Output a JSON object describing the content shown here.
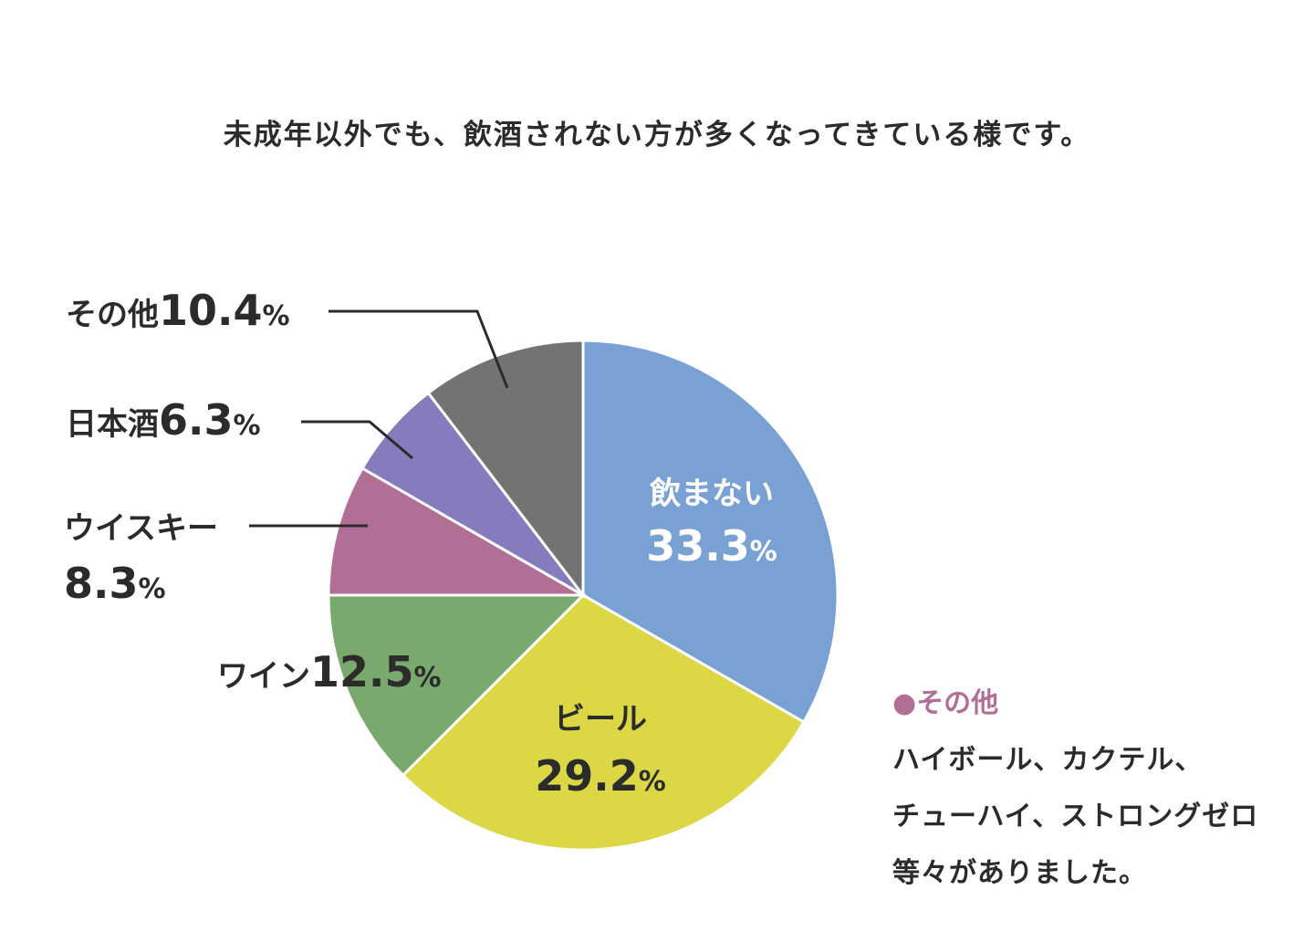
{
  "title": "未成年以外でも、飲酒されない方が多くなってきている様です。",
  "chart_data": {
    "type": "pie",
    "start": "12 o'clock, clockwise",
    "slices": [
      {
        "label": "飲まない",
        "value": 33.3,
        "value_text": "33.3",
        "color": "#7aa1d4",
        "label_color": "#ffffff",
        "label_placement": "inside"
      },
      {
        "label": "ビール",
        "value": 29.2,
        "value_text": "29.2",
        "color": "#dcd745",
        "label_color": "#2b2b2b",
        "label_placement": "inside"
      },
      {
        "label": "ワイン",
        "value": 12.5,
        "value_text": "12.5",
        "color": "#79a96c",
        "label_color": "#2b2b2b",
        "label_placement": "outside"
      },
      {
        "label": "ウイスキー",
        "value": 8.3,
        "value_text": "8.3",
        "color": "#b26f95",
        "label_color": "#2b2b2b",
        "label_placement": "outside-leader"
      },
      {
        "label": "日本酒",
        "value": 6.3,
        "value_text": "6.3",
        "color": "#857cbd",
        "label_color": "#2b2b2b",
        "label_placement": "outside-leader"
      },
      {
        "label": "その他",
        "value": 10.4,
        "value_text": "10.4",
        "color": "#737373",
        "label_color": "#2b2b2b",
        "label_placement": "outside-leader"
      }
    ],
    "unit": "%"
  },
  "note": {
    "bullet": "●",
    "heading": "その他",
    "heading_color": "#b26f95",
    "lines": [
      "ハイボール、カクテル、",
      "チューハイ、ストロングゼロ",
      "等々がありました。"
    ]
  }
}
